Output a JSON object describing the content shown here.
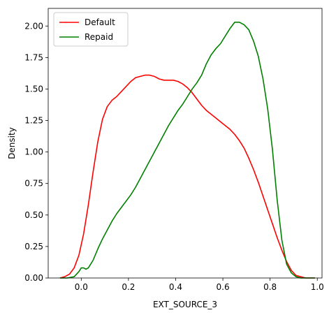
{
  "chart_data": {
    "type": "line",
    "title": "",
    "xlabel": "EXT_SOURCE_3",
    "ylabel": "Density",
    "xlim": [
      -0.14,
      1.02
    ],
    "ylim": [
      0,
      2.14
    ],
    "xticks": [
      0.0,
      0.2,
      0.4,
      0.6,
      0.8,
      1.0
    ],
    "xtick_labels": [
      "0.0",
      "0.2",
      "0.4",
      "0.6",
      "0.8",
      "1.0"
    ],
    "yticks": [
      0.0,
      0.25,
      0.5,
      0.75,
      1.0,
      1.25,
      1.5,
      1.75,
      2.0
    ],
    "ytick_labels": [
      "0.00",
      "0.25",
      "0.50",
      "0.75",
      "1.00",
      "1.25",
      "1.50",
      "1.75",
      "2.00"
    ],
    "grid": false,
    "legend_position": "top-left",
    "series": [
      {
        "name": "Default",
        "color": "#ff0000",
        "x": [
          -0.09,
          -0.07,
          -0.05,
          -0.03,
          -0.01,
          0.01,
          0.03,
          0.05,
          0.07,
          0.09,
          0.11,
          0.13,
          0.15,
          0.17,
          0.19,
          0.21,
          0.23,
          0.25,
          0.27,
          0.29,
          0.31,
          0.33,
          0.35,
          0.37,
          0.39,
          0.41,
          0.43,
          0.45,
          0.47,
          0.49,
          0.51,
          0.53,
          0.55,
          0.57,
          0.59,
          0.61,
          0.63,
          0.65,
          0.67,
          0.69,
          0.71,
          0.73,
          0.75,
          0.77,
          0.79,
          0.81,
          0.83,
          0.85,
          0.87,
          0.89,
          0.91,
          0.93,
          0.95,
          0.97,
          0.99
        ],
        "y": [
          0.0,
          0.01,
          0.03,
          0.08,
          0.18,
          0.35,
          0.58,
          0.84,
          1.08,
          1.26,
          1.36,
          1.41,
          1.44,
          1.48,
          1.52,
          1.56,
          1.59,
          1.6,
          1.61,
          1.61,
          1.6,
          1.58,
          1.57,
          1.57,
          1.57,
          1.56,
          1.54,
          1.51,
          1.47,
          1.42,
          1.37,
          1.33,
          1.3,
          1.27,
          1.24,
          1.21,
          1.18,
          1.14,
          1.09,
          1.03,
          0.95,
          0.86,
          0.76,
          0.65,
          0.54,
          0.43,
          0.32,
          0.22,
          0.13,
          0.06,
          0.02,
          0.01,
          0.0,
          0.0,
          0.0
        ]
      },
      {
        "name": "Repaid",
        "color": "#008000",
        "x": [
          -0.09,
          -0.06,
          -0.03,
          -0.01,
          0.0,
          0.01,
          0.02,
          0.03,
          0.05,
          0.07,
          0.09,
          0.11,
          0.13,
          0.15,
          0.17,
          0.19,
          0.21,
          0.23,
          0.25,
          0.27,
          0.29,
          0.31,
          0.33,
          0.35,
          0.37,
          0.39,
          0.41,
          0.43,
          0.45,
          0.47,
          0.49,
          0.51,
          0.53,
          0.55,
          0.57,
          0.59,
          0.61,
          0.63,
          0.65,
          0.67,
          0.69,
          0.71,
          0.73,
          0.75,
          0.77,
          0.79,
          0.81,
          0.83,
          0.85,
          0.87,
          0.89,
          0.91,
          0.93,
          0.95,
          0.97,
          0.99
        ],
        "y": [
          0.0,
          0.0,
          0.01,
          0.05,
          0.08,
          0.08,
          0.07,
          0.08,
          0.14,
          0.23,
          0.31,
          0.38,
          0.45,
          0.51,
          0.56,
          0.61,
          0.66,
          0.72,
          0.79,
          0.86,
          0.93,
          1.0,
          1.07,
          1.14,
          1.21,
          1.27,
          1.33,
          1.38,
          1.44,
          1.5,
          1.55,
          1.61,
          1.7,
          1.77,
          1.82,
          1.86,
          1.92,
          1.98,
          2.03,
          2.03,
          2.01,
          1.97,
          1.88,
          1.76,
          1.58,
          1.34,
          1.02,
          0.62,
          0.3,
          0.11,
          0.04,
          0.01,
          0.0,
          0.0,
          0.0,
          0.0
        ]
      }
    ]
  }
}
